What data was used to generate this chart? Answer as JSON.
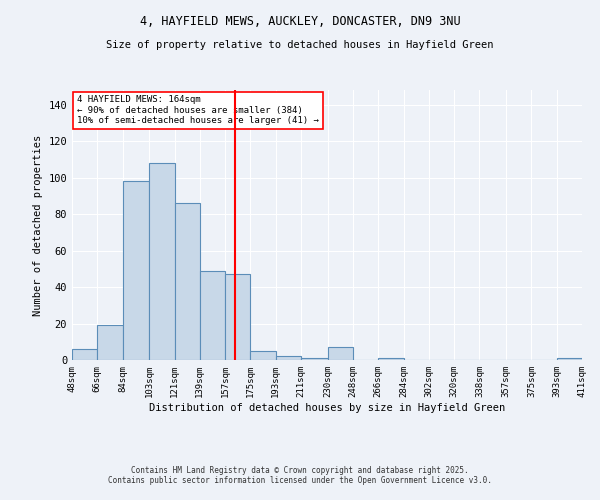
{
  "title_line1": "4, HAYFIELD MEWS, AUCKLEY, DONCASTER, DN9 3NU",
  "title_line2": "Size of property relative to detached houses in Hayfield Green",
  "xlabel": "Distribution of detached houses by size in Hayfield Green",
  "ylabel": "Number of detached properties",
  "bar_color": "#c8d8e8",
  "bar_edge_color": "#5b8db8",
  "background_color": "#eef2f8",
  "grid_color": "#ffffff",
  "vline_color": "red",
  "vline_x": 164,
  "bin_edges": [
    48,
    66,
    84,
    103,
    121,
    139,
    157,
    175,
    193,
    211,
    230,
    248,
    266,
    284,
    302,
    320,
    338,
    357,
    375,
    393,
    411
  ],
  "bar_heights": [
    6,
    19,
    98,
    108,
    86,
    49,
    47,
    5,
    2,
    1,
    7,
    0,
    1,
    0,
    0,
    0,
    0,
    0,
    0,
    1
  ],
  "tick_labels": [
    "48sqm",
    "66sqm",
    "84sqm",
    "103sqm",
    "121sqm",
    "139sqm",
    "157sqm",
    "175sqm",
    "193sqm",
    "211sqm",
    "230sqm",
    "248sqm",
    "266sqm",
    "284sqm",
    "302sqm",
    "320sqm",
    "338sqm",
    "357sqm",
    "375sqm",
    "393sqm",
    "411sqm"
  ],
  "annotation_title": "4 HAYFIELD MEWS: 164sqm",
  "annotation_line1": "← 90% of detached houses are smaller (384)",
  "annotation_line2": "10% of semi-detached houses are larger (41) →",
  "annotation_box_color": "#ffffff",
  "annotation_box_edge_color": "red",
  "footnote_line1": "Contains HM Land Registry data © Crown copyright and database right 2025.",
  "footnote_line2": "Contains public sector information licensed under the Open Government Licence v3.0.",
  "ylim": [
    0,
    148
  ],
  "yticks": [
    0,
    20,
    40,
    60,
    80,
    100,
    120,
    140
  ]
}
